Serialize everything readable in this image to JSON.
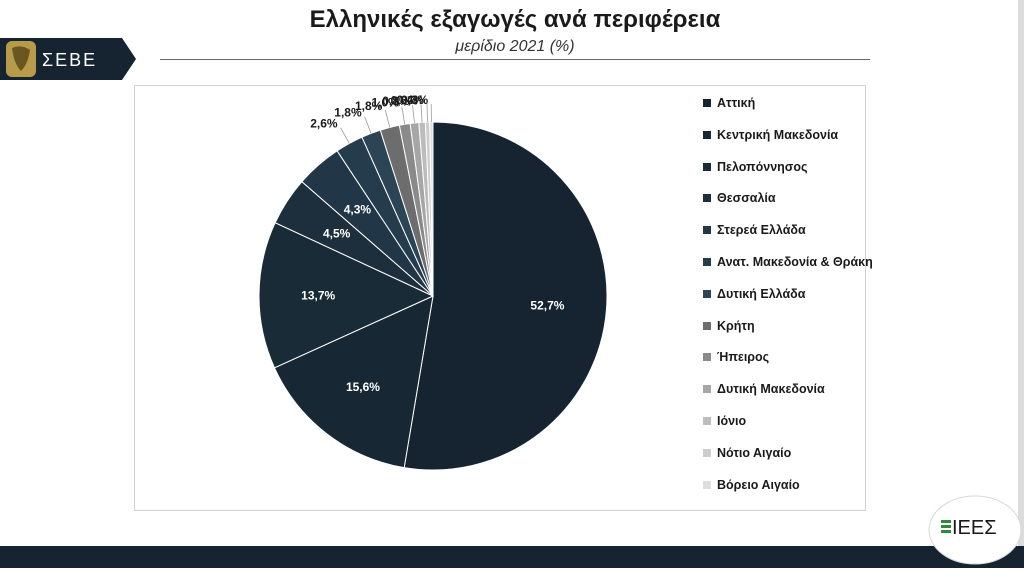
{
  "header": {
    "title": "Ελληνικές εξαγωγές ανά περιφέρεια",
    "subtitle": "μερίδιο 2021 (%)",
    "logo_left_text": "ΣΕΒΕ",
    "logo_right_text": "ΙΕΕΣ"
  },
  "chart_data": {
    "type": "pie",
    "title": "Ελληνικές εξαγωγές ανά περιφέρεια",
    "subtitle": "μερίδιο 2021 (%)",
    "legend_position": "right",
    "categories": [
      "Αττική",
      "Κεντρική Μακεδονία",
      "Πελοπόννησος",
      "Θεσσαλία",
      "Στερεά Ελλάδα",
      "Ανατ. Μακεδονία & Θράκη",
      "Δυτική Ελλάδα",
      "Κρήτη",
      "Ήπειρος",
      "Δυτική Μακεδονία",
      "Ιόνιο",
      "Νότιο Αιγαίο",
      "Βόρειο Αιγαίο"
    ],
    "values": [
      52.7,
      15.6,
      13.7,
      4.5,
      4.3,
      2.6,
      1.8,
      1.8,
      1.0,
      0.8,
      0.6,
      0.4,
      0.3
    ],
    "value_labels": [
      "52,7%",
      "15,6%",
      "13,7%",
      "4,5%",
      "4,3%",
      "2,6%",
      "1,8%",
      "1,8%",
      "1,0%",
      "0,8%",
      "0,6%",
      "0,4%",
      "0,3%"
    ],
    "colors": [
      "#152430",
      "#172733",
      "#1a2b38",
      "#1d2f3c",
      "#213647",
      "#253c4d",
      "#2b4456",
      "#6d6d6d",
      "#8a8a8a",
      "#a6a6a6",
      "#bcbcbc",
      "#cdcdcd",
      "#dedede"
    ]
  }
}
